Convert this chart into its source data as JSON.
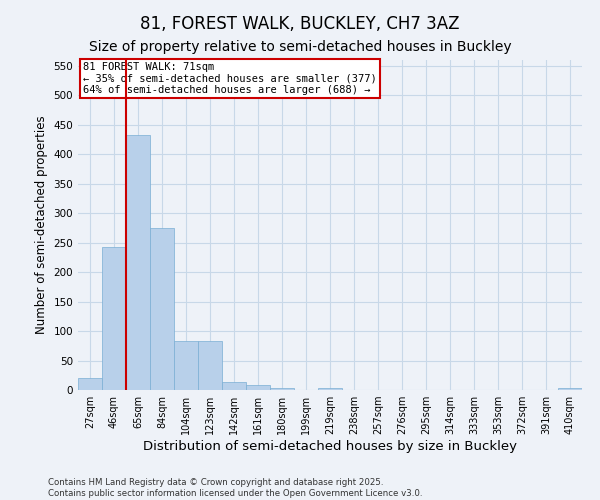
{
  "title": "81, FOREST WALK, BUCKLEY, CH7 3AZ",
  "subtitle": "Size of property relative to semi-detached houses in Buckley",
  "xlabel": "Distribution of semi-detached houses by size in Buckley",
  "ylabel": "Number of semi-detached properties",
  "categories": [
    "27sqm",
    "46sqm",
    "65sqm",
    "84sqm",
    "104sqm",
    "123sqm",
    "142sqm",
    "161sqm",
    "180sqm",
    "199sqm",
    "219sqm",
    "238sqm",
    "257sqm",
    "276sqm",
    "295sqm",
    "314sqm",
    "333sqm",
    "353sqm",
    "372sqm",
    "391sqm",
    "410sqm"
  ],
  "values": [
    20,
    243,
    433,
    275,
    83,
    83,
    13,
    8,
    3,
    0,
    3,
    0,
    0,
    0,
    0,
    0,
    0,
    0,
    0,
    0,
    3
  ],
  "bar_color": "#b8d0ea",
  "bar_edge_color": "#7aaed4",
  "grid_color": "#c8d8e8",
  "background_color": "#eef2f8",
  "vline_color": "#cc0000",
  "annotation_title": "81 FOREST WALK: 71sqm",
  "annotation_line1": "← 35% of semi-detached houses are smaller (377)",
  "annotation_line2": "64% of semi-detached houses are larger (688) →",
  "annotation_box_color": "#ffffff",
  "annotation_box_edge": "#cc0000",
  "ylim": [
    0,
    560
  ],
  "yticks": [
    0,
    50,
    100,
    150,
    200,
    250,
    300,
    350,
    400,
    450,
    500,
    550
  ],
  "footer_line1": "Contains HM Land Registry data © Crown copyright and database right 2025.",
  "footer_line2": "Contains public sector information licensed under the Open Government Licence v3.0.",
  "title_fontsize": 12,
  "subtitle_fontsize": 10,
  "tick_fontsize": 7,
  "ylabel_fontsize": 8.5,
  "xlabel_fontsize": 9.5,
  "vline_bar_index": 2
}
